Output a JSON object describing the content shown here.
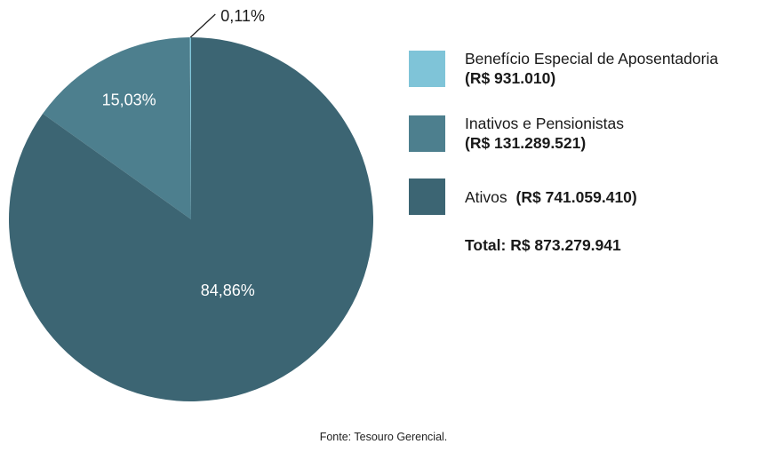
{
  "chart_data": {
    "type": "pie",
    "title": "",
    "legend_position": "right",
    "start_angle_deg": 90,
    "direction": "counterclockwise",
    "series": [
      {
        "name": "Benefício Especial de Aposentadoria",
        "value_label": "(R$ 931.010)",
        "value": 931010,
        "percent": 0.11,
        "percent_label": "0,11%",
        "color": "#7fc4d8"
      },
      {
        "name": "Inativos e Pensionistas",
        "value_label": "(R$ 131.289.521)",
        "value": 131289521,
        "percent": 15.03,
        "percent_label": "15,03%",
        "color": "#4d7f8e"
      },
      {
        "name": "Ativos",
        "value_label": "(R$ 741.059.410)",
        "value": 741059410,
        "percent": 84.86,
        "percent_label": "84,86%",
        "color": "#3c6573"
      }
    ],
    "total_label": "Total: R$ 873.279.941",
    "source": "Fonte: Tesouro Gerencial.",
    "slice_label_color": "#ffffff",
    "callout_color": "#1a1a1a"
  }
}
